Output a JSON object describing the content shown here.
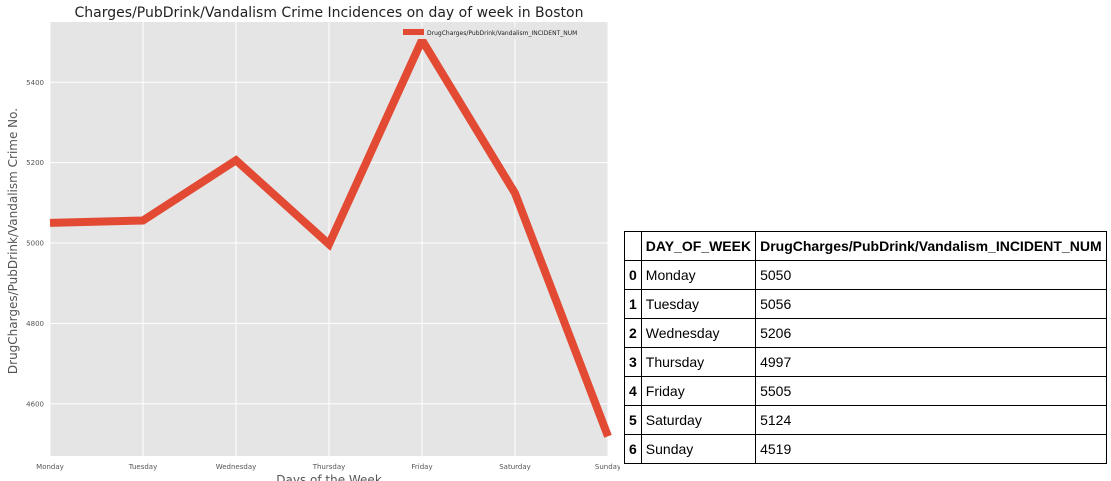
{
  "chart_data": {
    "type": "line",
    "title": "Charges/PubDrink/Vandalism Crime Incidences on day of week in Boston",
    "xlabel": "Days of the Week",
    "ylabel": "DrugCharges/PubDrink/Vandalism Crime No.",
    "categories": [
      "Monday",
      "Tuesday",
      "Wednesday",
      "Thursday",
      "Friday",
      "Saturday",
      "Sunday"
    ],
    "series": [
      {
        "name": "DrugCharges/PubDrink/Vandalism_INCIDENT_NUM",
        "values": [
          5050,
          5056,
          5206,
          4997,
          5505,
          5124,
          4519
        ]
      }
    ],
    "ylim": [
      4470,
      5550
    ],
    "yticks": [
      4600,
      4800,
      5000,
      5200,
      5400
    ],
    "grid": true,
    "legend_position": "top-right",
    "colors": {
      "line": "#E24A33",
      "plot_bg": "#E5E5E5",
      "grid": "#FFFFFF"
    }
  },
  "table": {
    "headers": [
      "",
      "DAY_OF_WEEK",
      "DrugCharges/PubDrink/Vandalism_INCIDENT_NUM"
    ],
    "rows": [
      [
        "0",
        "Monday",
        "5050"
      ],
      [
        "1",
        "Tuesday",
        "5056"
      ],
      [
        "2",
        "Wednesday",
        "5206"
      ],
      [
        "3",
        "Thursday",
        "4997"
      ],
      [
        "4",
        "Friday",
        "5505"
      ],
      [
        "5",
        "Saturday",
        "5124"
      ],
      [
        "6",
        "Sunday",
        "4519"
      ]
    ]
  }
}
